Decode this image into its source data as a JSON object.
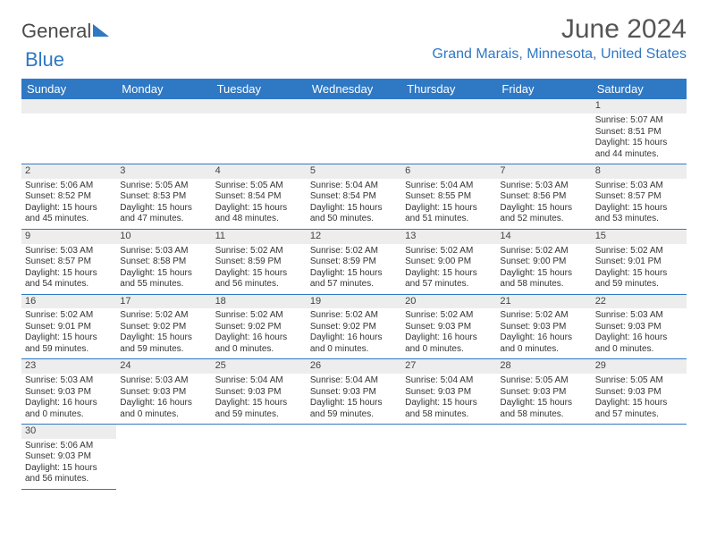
{
  "logo": {
    "part1": "General",
    "part2": "Blue"
  },
  "title": "June 2024",
  "location": "Grand Marais, Minnesota, United States",
  "header_bg": "#2f78c4",
  "header_fg": "#ffffff",
  "daynum_bg": "#ededed",
  "border_color": "#2f78c4",
  "body_fontsize": 10,
  "day_headers": [
    "Sunday",
    "Monday",
    "Tuesday",
    "Wednesday",
    "Thursday",
    "Friday",
    "Saturday"
  ],
  "weeks": [
    [
      null,
      null,
      null,
      null,
      null,
      null,
      {
        "n": "1",
        "sunrise": "Sunrise: 5:07 AM",
        "sunset": "Sunset: 8:51 PM",
        "daylight": "Daylight: 15 hours and 44 minutes."
      }
    ],
    [
      {
        "n": "2",
        "sunrise": "Sunrise: 5:06 AM",
        "sunset": "Sunset: 8:52 PM",
        "daylight": "Daylight: 15 hours and 45 minutes."
      },
      {
        "n": "3",
        "sunrise": "Sunrise: 5:05 AM",
        "sunset": "Sunset: 8:53 PM",
        "daylight": "Daylight: 15 hours and 47 minutes."
      },
      {
        "n": "4",
        "sunrise": "Sunrise: 5:05 AM",
        "sunset": "Sunset: 8:54 PM",
        "daylight": "Daylight: 15 hours and 48 minutes."
      },
      {
        "n": "5",
        "sunrise": "Sunrise: 5:04 AM",
        "sunset": "Sunset: 8:54 PM",
        "daylight": "Daylight: 15 hours and 50 minutes."
      },
      {
        "n": "6",
        "sunrise": "Sunrise: 5:04 AM",
        "sunset": "Sunset: 8:55 PM",
        "daylight": "Daylight: 15 hours and 51 minutes."
      },
      {
        "n": "7",
        "sunrise": "Sunrise: 5:03 AM",
        "sunset": "Sunset: 8:56 PM",
        "daylight": "Daylight: 15 hours and 52 minutes."
      },
      {
        "n": "8",
        "sunrise": "Sunrise: 5:03 AM",
        "sunset": "Sunset: 8:57 PM",
        "daylight": "Daylight: 15 hours and 53 minutes."
      }
    ],
    [
      {
        "n": "9",
        "sunrise": "Sunrise: 5:03 AM",
        "sunset": "Sunset: 8:57 PM",
        "daylight": "Daylight: 15 hours and 54 minutes."
      },
      {
        "n": "10",
        "sunrise": "Sunrise: 5:03 AM",
        "sunset": "Sunset: 8:58 PM",
        "daylight": "Daylight: 15 hours and 55 minutes."
      },
      {
        "n": "11",
        "sunrise": "Sunrise: 5:02 AM",
        "sunset": "Sunset: 8:59 PM",
        "daylight": "Daylight: 15 hours and 56 minutes."
      },
      {
        "n": "12",
        "sunrise": "Sunrise: 5:02 AM",
        "sunset": "Sunset: 8:59 PM",
        "daylight": "Daylight: 15 hours and 57 minutes."
      },
      {
        "n": "13",
        "sunrise": "Sunrise: 5:02 AM",
        "sunset": "Sunset: 9:00 PM",
        "daylight": "Daylight: 15 hours and 57 minutes."
      },
      {
        "n": "14",
        "sunrise": "Sunrise: 5:02 AM",
        "sunset": "Sunset: 9:00 PM",
        "daylight": "Daylight: 15 hours and 58 minutes."
      },
      {
        "n": "15",
        "sunrise": "Sunrise: 5:02 AM",
        "sunset": "Sunset: 9:01 PM",
        "daylight": "Daylight: 15 hours and 59 minutes."
      }
    ],
    [
      {
        "n": "16",
        "sunrise": "Sunrise: 5:02 AM",
        "sunset": "Sunset: 9:01 PM",
        "daylight": "Daylight: 15 hours and 59 minutes."
      },
      {
        "n": "17",
        "sunrise": "Sunrise: 5:02 AM",
        "sunset": "Sunset: 9:02 PM",
        "daylight": "Daylight: 15 hours and 59 minutes."
      },
      {
        "n": "18",
        "sunrise": "Sunrise: 5:02 AM",
        "sunset": "Sunset: 9:02 PM",
        "daylight": "Daylight: 16 hours and 0 minutes."
      },
      {
        "n": "19",
        "sunrise": "Sunrise: 5:02 AM",
        "sunset": "Sunset: 9:02 PM",
        "daylight": "Daylight: 16 hours and 0 minutes."
      },
      {
        "n": "20",
        "sunrise": "Sunrise: 5:02 AM",
        "sunset": "Sunset: 9:03 PM",
        "daylight": "Daylight: 16 hours and 0 minutes."
      },
      {
        "n": "21",
        "sunrise": "Sunrise: 5:02 AM",
        "sunset": "Sunset: 9:03 PM",
        "daylight": "Daylight: 16 hours and 0 minutes."
      },
      {
        "n": "22",
        "sunrise": "Sunrise: 5:03 AM",
        "sunset": "Sunset: 9:03 PM",
        "daylight": "Daylight: 16 hours and 0 minutes."
      }
    ],
    [
      {
        "n": "23",
        "sunrise": "Sunrise: 5:03 AM",
        "sunset": "Sunset: 9:03 PM",
        "daylight": "Daylight: 16 hours and 0 minutes."
      },
      {
        "n": "24",
        "sunrise": "Sunrise: 5:03 AM",
        "sunset": "Sunset: 9:03 PM",
        "daylight": "Daylight: 16 hours and 0 minutes."
      },
      {
        "n": "25",
        "sunrise": "Sunrise: 5:04 AM",
        "sunset": "Sunset: 9:03 PM",
        "daylight": "Daylight: 15 hours and 59 minutes."
      },
      {
        "n": "26",
        "sunrise": "Sunrise: 5:04 AM",
        "sunset": "Sunset: 9:03 PM",
        "daylight": "Daylight: 15 hours and 59 minutes."
      },
      {
        "n": "27",
        "sunrise": "Sunrise: 5:04 AM",
        "sunset": "Sunset: 9:03 PM",
        "daylight": "Daylight: 15 hours and 58 minutes."
      },
      {
        "n": "28",
        "sunrise": "Sunrise: 5:05 AM",
        "sunset": "Sunset: 9:03 PM",
        "daylight": "Daylight: 15 hours and 58 minutes."
      },
      {
        "n": "29",
        "sunrise": "Sunrise: 5:05 AM",
        "sunset": "Sunset: 9:03 PM",
        "daylight": "Daylight: 15 hours and 57 minutes."
      }
    ],
    [
      {
        "n": "30",
        "sunrise": "Sunrise: 5:06 AM",
        "sunset": "Sunset: 9:03 PM",
        "daylight": "Daylight: 15 hours and 56 minutes."
      },
      null,
      null,
      null,
      null,
      null,
      null
    ]
  ]
}
